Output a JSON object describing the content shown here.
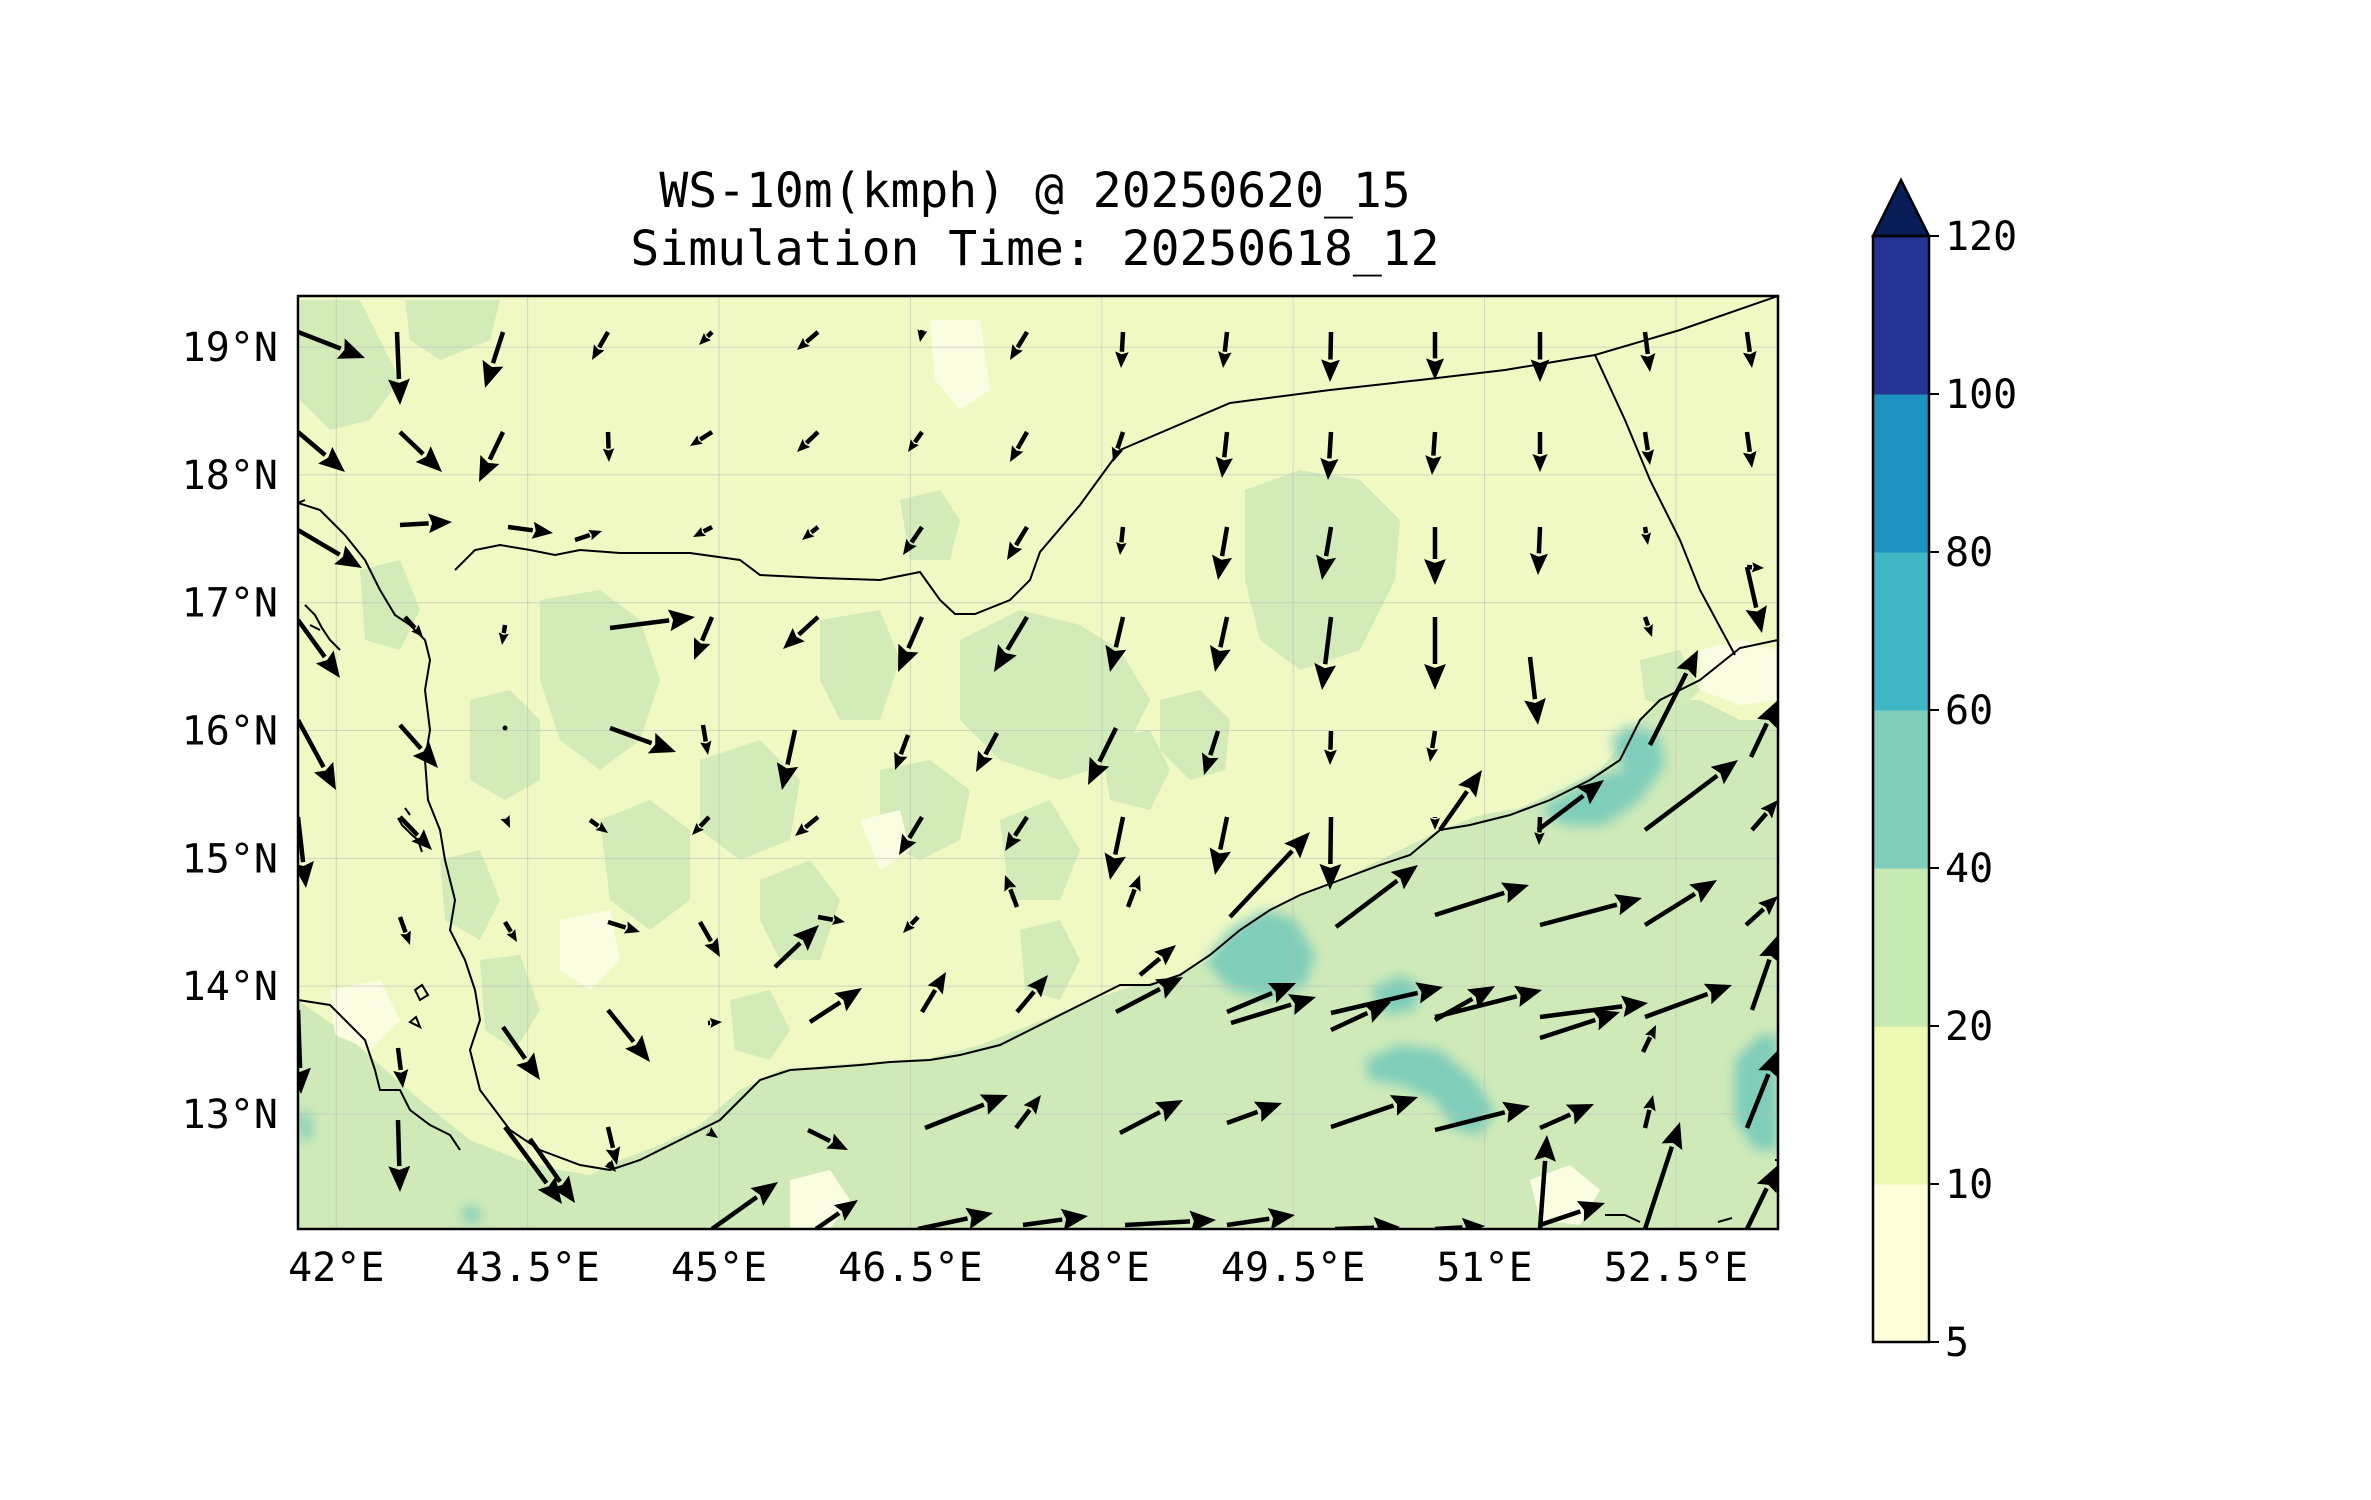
{
  "title": "WS-10m(kmph) @ 20250620_15",
  "subtitle": "Simulation Time: 20250618_12",
  "colors": {
    "background": "#ffffff",
    "land_fill": "#f0f9c4",
    "level_colors": [
      "#ffffd9",
      "#edf8b1",
      "#c7e9b4",
      "#7fcdbb",
      "#41b6c4",
      "#1d91c0",
      "#253494",
      "#081d58"
    ],
    "arrow": "#000000",
    "border": "#000000"
  },
  "map": {
    "lon_range": [
      41.7,
      53.3
    ],
    "lat_range": [
      12.1,
      19.4
    ],
    "lon_ticks": [
      "42°E",
      "43.5°E",
      "45°E",
      "46.5°E",
      "48°E",
      "49.5°E",
      "51°E",
      "52.5°E"
    ],
    "lat_ticks": [
      "13°N",
      "14°N",
      "15°N",
      "16°N",
      "17°N",
      "18°N",
      "19°N"
    ],
    "grid": true
  },
  "colorbar": {
    "levels": [
      "5",
      "10",
      "20",
      "40",
      "60",
      "80",
      "100",
      "120"
    ],
    "extend": "max"
  }
}
